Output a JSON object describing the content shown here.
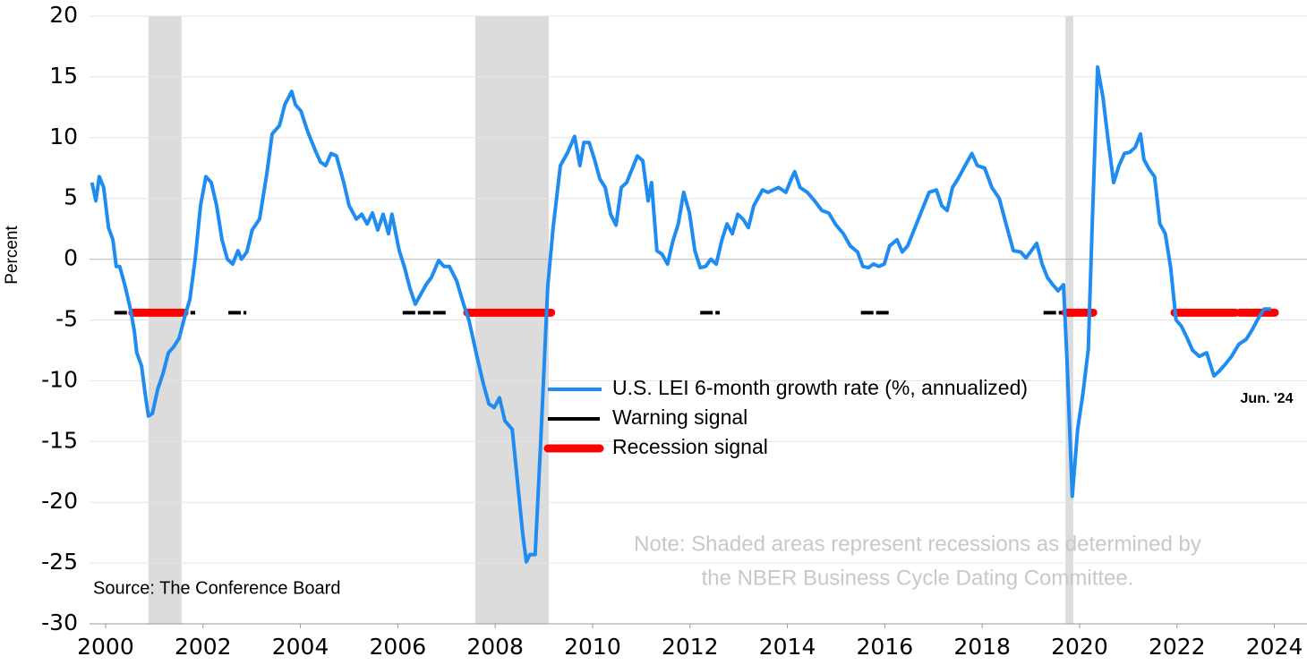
{
  "chart_data": {
    "type": "line",
    "y_label": "Percent",
    "xlim": [
      1999.67,
      2024.67
    ],
    "ylim": [
      -30,
      20
    ],
    "xticks": [
      2000,
      2002,
      2004,
      2006,
      2008,
      2010,
      2012,
      2014,
      2016,
      2018,
      2020,
      2022,
      2024
    ],
    "yticks": [
      -30,
      -25,
      -20,
      -15,
      -10,
      -5,
      0,
      5,
      10,
      15,
      20
    ],
    "grid": true,
    "x": [
      1999.72,
      1999.8,
      1999.87,
      1999.96,
      2000.06,
      2000.15,
      2000.22,
      2000.29,
      2000.4,
      2000.51,
      2000.59,
      2000.64,
      2000.74,
      2000.81,
      2000.88,
      2000.96,
      2001.07,
      2001.18,
      2001.29,
      2001.4,
      2001.51,
      2001.62,
      2001.73,
      2001.84,
      2001.95,
      2002.06,
      2002.17,
      2002.28,
      2002.39,
      2002.5,
      2002.61,
      2002.72,
      2002.79,
      2002.9,
      2003.01,
      2003.16,
      2003.31,
      2003.42,
      2003.57,
      2003.68,
      2003.82,
      2003.9,
      2004.01,
      2004.15,
      2004.3,
      2004.41,
      2004.52,
      2004.63,
      2004.74,
      2004.89,
      2005.0,
      2005.15,
      2005.26,
      2005.37,
      2005.48,
      2005.59,
      2005.7,
      2005.81,
      2005.88,
      2006.03,
      2006.14,
      2006.25,
      2006.36,
      2006.47,
      2006.58,
      2006.69,
      2006.84,
      2006.95,
      2007.06,
      2007.21,
      2007.35,
      2007.46,
      2007.61,
      2007.76,
      2007.87,
      2007.98,
      2008.09,
      2008.2,
      2008.35,
      2008.46,
      2008.57,
      2008.64,
      2008.71,
      2008.82,
      2008.93,
      2009.08,
      2009.19,
      2009.34,
      2009.49,
      2009.63,
      2009.74,
      2009.82,
      2009.93,
      2010.04,
      2010.15,
      2010.26,
      2010.37,
      2010.48,
      2010.59,
      2010.7,
      2010.81,
      2010.92,
      2011.03,
      2011.14,
      2011.21,
      2011.32,
      2011.43,
      2011.54,
      2011.65,
      2011.76,
      2011.87,
      2011.99,
      2012.1,
      2012.21,
      2012.32,
      2012.43,
      2012.54,
      2012.65,
      2012.76,
      2012.87,
      2012.98,
      2013.09,
      2013.2,
      2013.31,
      2013.42,
      2013.49,
      2013.6,
      2013.71,
      2013.82,
      2013.97,
      2014.08,
      2014.15,
      2014.26,
      2014.41,
      2014.56,
      2014.71,
      2014.85,
      2015.0,
      2015.15,
      2015.29,
      2015.44,
      2015.55,
      2015.66,
      2015.77,
      2015.88,
      2015.99,
      2016.1,
      2016.25,
      2016.36,
      2016.47,
      2016.62,
      2016.76,
      2016.91,
      2017.06,
      2017.17,
      2017.28,
      2017.39,
      2017.5,
      2017.65,
      2017.79,
      2017.9,
      2018.05,
      2018.2,
      2018.35,
      2018.49,
      2018.64,
      2018.79,
      2018.9,
      2019.01,
      2019.12,
      2019.23,
      2019.34,
      2019.45,
      2019.56,
      2019.67,
      2019.74,
      2019.85,
      2019.96,
      2020.07,
      2020.18,
      2020.26,
      2020.37,
      2020.48,
      2020.59,
      2020.7,
      2020.81,
      2020.92,
      2021.03,
      2021.14,
      2021.25,
      2021.32,
      2021.43,
      2021.54,
      2021.65,
      2021.76,
      2021.87,
      2021.98,
      2022.09,
      2022.21,
      2022.32,
      2022.46,
      2022.61,
      2022.76,
      2022.87,
      2022.98,
      2023.12,
      2023.27,
      2023.42,
      2023.53,
      2023.68,
      2023.79,
      2023.93
    ],
    "series": [
      {
        "name": "U.S. LEI 6-month growth rate (%, annualized)",
        "color": "#1e8cf0",
        "values": [
          6.3,
          4.8,
          6.8,
          5.9,
          2.6,
          1.6,
          -0.6,
          -0.6,
          -2.2,
          -4.1,
          -5.9,
          -7.7,
          -8.8,
          -11.0,
          -12.9,
          -12.7,
          -10.7,
          -9.4,
          -7.7,
          -7.2,
          -6.5,
          -4.8,
          -3.3,
          0,
          4.4,
          6.8,
          6.3,
          4.4,
          1.6,
          0,
          -0.4,
          0.7,
          0,
          0.6,
          2.4,
          3.3,
          7.0,
          10.3,
          11.0,
          12.7,
          13.8,
          12.7,
          12.2,
          10.5,
          9.0,
          8.0,
          7.7,
          8.7,
          8.5,
          6.3,
          4.4,
          3.3,
          3.7,
          2.9,
          3.8,
          2.4,
          3.7,
          2.1,
          3.7,
          0.7,
          -0.7,
          -2.4,
          -3.7,
          -2.9,
          -2.1,
          -1.5,
          -0.1,
          -0.6,
          -0.6,
          -1.8,
          -3.7,
          -5.0,
          -7.7,
          -10.3,
          -11.9,
          -12.2,
          -11.4,
          -13.3,
          -14.0,
          -18.4,
          -22.8,
          -24.9,
          -24.3,
          -24.3,
          -15.5,
          -2.2,
          2.6,
          7.7,
          8.8,
          10.1,
          7.7,
          9.6,
          9.6,
          8.2,
          6.6,
          5.9,
          3.7,
          2.8,
          5.9,
          6.3,
          7.4,
          8.5,
          8.1,
          4.8,
          6.3,
          0.7,
          0.4,
          -0.4,
          1.5,
          2.9,
          5.5,
          3.8,
          0.7,
          -0.7,
          -0.6,
          0,
          -0.4,
          1.5,
          2.9,
          2.1,
          3.7,
          3.3,
          2.6,
          4.4,
          5.2,
          5.7,
          5.5,
          5.7,
          5.9,
          5.5,
          6.6,
          7.2,
          5.9,
          5.5,
          4.8,
          4.0,
          3.8,
          2.8,
          2.1,
          1.1,
          0.6,
          -0.6,
          -0.7,
          -0.4,
          -0.6,
          -0.4,
          1.1,
          1.6,
          0.6,
          1.1,
          2.6,
          4.0,
          5.5,
          5.7,
          4.4,
          4.0,
          5.9,
          6.6,
          7.7,
          8.7,
          7.7,
          7.5,
          5.9,
          5.0,
          2.9,
          0.7,
          0.6,
          0.1,
          0.7,
          1.3,
          -0.4,
          -1.5,
          -2.1,
          -2.6,
          -2.1,
          -8.1,
          -19.5,
          -14.0,
          -11.0,
          -7.4,
          2.9,
          15.8,
          13.3,
          9.7,
          6.3,
          7.7,
          8.7,
          8.8,
          9.2,
          10.3,
          8.2,
          7.4,
          6.8,
          2.9,
          2.1,
          -0.7,
          -5.0,
          -5.5,
          -6.5,
          -7.5,
          -8.0,
          -7.7,
          -9.6,
          -9.2,
          -8.7,
          -8.0,
          -7.0,
          -6.6,
          -5.9,
          -4.8,
          -4.1,
          -4.1
        ]
      }
    ],
    "signals": [
      {
        "name": "Warning signal",
        "color": "#000000",
        "level": -4.4,
        "periods": [
          [
            2000.18,
            2001.84
          ],
          [
            2002.52,
            2002.89
          ],
          [
            2006.1,
            2007.02
          ],
          [
            2007.35,
            2009.15
          ],
          [
            2012.21,
            2012.61
          ],
          [
            2015.51,
            2016.08
          ],
          [
            2019.26,
            2020.28
          ],
          [
            2021.91,
            2024.03
          ]
        ]
      },
      {
        "name": "Recession signal",
        "color": "#ff0000",
        "level": -4.4,
        "periods": [
          [
            2000.55,
            2001.62
          ],
          [
            2007.43,
            2009.15
          ],
          [
            2019.71,
            2020.28
          ],
          [
            2021.95,
            2023.2
          ],
          [
            2023.29,
            2024.01
          ]
        ]
      }
    ],
    "recessions": [
      [
        2000.88,
        2001.56
      ],
      [
        2007.59,
        2009.1
      ],
      [
        2019.71,
        2019.87
      ]
    ],
    "recession_color": "#dcdcdc",
    "last_label": "Jun. '24",
    "note": [
      "Note: Shaded areas represent recessions as determined by",
      "the NBER Business Cycle Dating Committee."
    ],
    "source": "Source: The Conference Board"
  }
}
